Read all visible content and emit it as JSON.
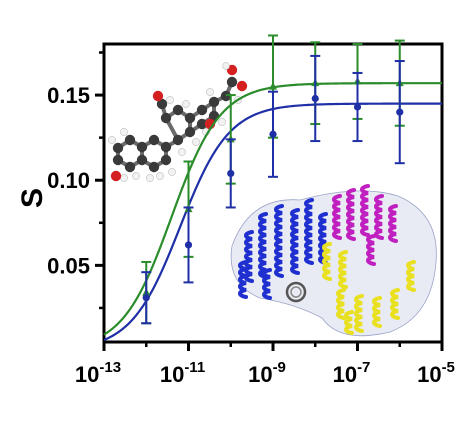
{
  "chart_data": {
    "type": "scatter",
    "ylabel": "S",
    "xlabel": "",
    "x_scale": "log",
    "xlim": [
      1e-13,
      1e-05
    ],
    "ylim": [
      0.005,
      0.18
    ],
    "x_ticks": [
      {
        "value": 1e-13,
        "base": "10",
        "exp": "-13"
      },
      {
        "value": 1e-11,
        "base": "10",
        "exp": "-11"
      },
      {
        "value": 1e-09,
        "base": "10",
        "exp": "-9"
      },
      {
        "value": 1e-07,
        "base": "10",
        "exp": "-7"
      },
      {
        "value": 1e-05,
        "base": "10",
        "exp": "-5"
      }
    ],
    "y_ticks": [
      {
        "value": 0.05,
        "label": "0.05"
      },
      {
        "value": 0.1,
        "label": "0.10"
      },
      {
        "value": 0.15,
        "label": "0.15"
      }
    ],
    "series": [
      {
        "color": "#2a8c2a",
        "marker": "triangle",
        "x": [
          1e-12,
          1e-11,
          1e-10,
          1e-09,
          1e-08,
          1e-07,
          1e-06
        ],
        "y": [
          0.034,
          0.083,
          0.124,
          0.155,
          0.157,
          0.158,
          0.157
        ],
        "err": [
          0.018,
          0.028,
          0.026,
          0.03,
          0.024,
          0.022,
          0.025
        ],
        "fit": {
          "bottom": 0.0,
          "top": 0.157,
          "logEC50": -11.4,
          "hill": 0.75
        }
      },
      {
        "color": "#1f2fa6",
        "marker": "circle",
        "x": [
          1e-12,
          1e-11,
          1e-10,
          1e-09,
          1e-08,
          1e-07,
          1e-06
        ],
        "y": [
          0.031,
          0.062,
          0.104,
          0.127,
          0.148,
          0.143,
          0.14
        ],
        "err": [
          0.015,
          0.022,
          0.02,
          0.025,
          0.025,
          0.02,
          0.03
        ],
        "fit": {
          "bottom": 0.0,
          "top": 0.145,
          "logEC50": -11.2,
          "hill": 0.75
        }
      }
    ],
    "grid": false,
    "legend": "none"
  },
  "insets": {
    "molecule": "steroid-ball-and-stick",
    "protein": "protein-ribbon-structure",
    "molecule_colors": {
      "carbon": "#3a3a3a",
      "oxygen": "#d42020",
      "hydrogen": "#f2f2f2"
    },
    "protein_colors": [
      "#1f2fd0",
      "#c020c0",
      "#e8e020",
      "#b0b8d8"
    ]
  }
}
